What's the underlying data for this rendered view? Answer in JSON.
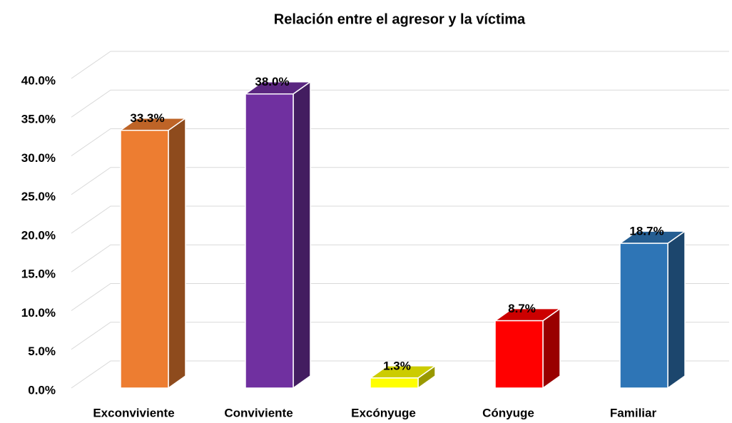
{
  "chart_data": {
    "type": "bar3d",
    "title": "Relación entre el agresor y la víctima",
    "categories": [
      "Exconviviente",
      "Conviviente",
      "Excónyuge",
      "Cónyuge",
      "Familiar"
    ],
    "values": [
      33.3,
      38.0,
      1.3,
      8.7,
      18.7
    ],
    "value_labels": [
      "33.3%",
      "38.0%",
      "1.3%",
      "8.7%",
      "18.7%"
    ],
    "colors": [
      "#ed7d31",
      "#7030a0",
      "#ffff00",
      "#ff0000",
      "#2e75b6"
    ],
    "ylim": [
      0,
      40
    ],
    "yticks": [
      {
        "value": 0,
        "label": "0.0%"
      },
      {
        "value": 5,
        "label": "5.0%"
      },
      {
        "value": 10,
        "label": "10.0%"
      },
      {
        "value": 15,
        "label": "15.0%"
      },
      {
        "value": 20,
        "label": "20.0%"
      },
      {
        "value": 25,
        "label": "25.0%"
      },
      {
        "value": 30,
        "label": "30.0%"
      },
      {
        "value": 35,
        "label": "35.0%"
      },
      {
        "value": 40,
        "label": "40.0%"
      }
    ],
    "grid": true
  }
}
